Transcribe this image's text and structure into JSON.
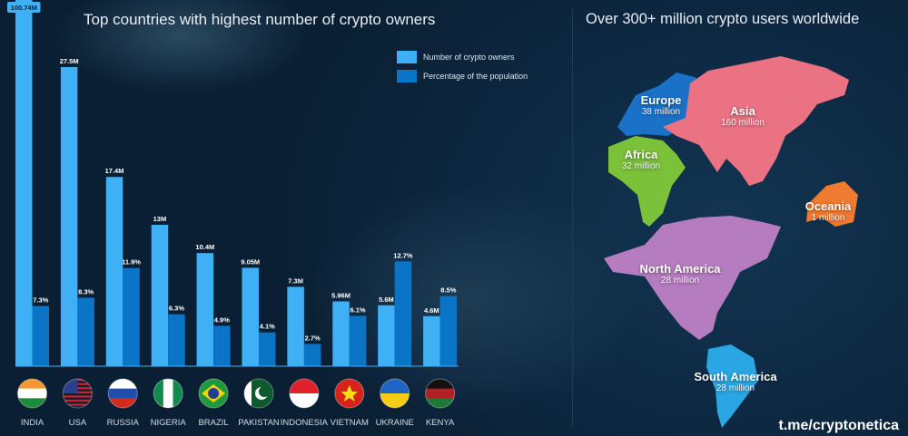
{
  "chart_data": {
    "type": "bar",
    "title": "Top countries with highest number of crypto owners",
    "categories": [
      "INDIA",
      "USA",
      "RUSSIA",
      "NIGERIA",
      "BRAZIL",
      "PAKISTAN",
      "INDONESIA",
      "VIETNAM",
      "UKRAINE",
      "KENYA"
    ],
    "series": [
      {
        "name": "Number of crypto owners",
        "values": [
          100.74,
          27.5,
          17.4,
          13,
          10.4,
          9.05,
          7.3,
          5.96,
          5.6,
          4.6
        ],
        "labels": [
          "100.74M",
          "27.5M",
          "17.4M",
          "13M",
          "10.4M",
          "9.05M",
          "7.3M",
          "5.96M",
          "5.6M",
          "4.6M"
        ],
        "color": "#3fb0f5"
      },
      {
        "name": "Percentage of the population",
        "values": [
          7.3,
          8.3,
          11.9,
          6.3,
          4.9,
          4.1,
          2.7,
          6.1,
          12.7,
          8.5
        ],
        "labels": [
          "7.3%",
          "8.3%",
          "11.9%",
          "6.3%",
          "4.9%",
          "4.1%",
          "2.7%",
          "6.1%",
          "12.7%",
          "8.5%"
        ],
        "color": "#0a74c6"
      }
    ],
    "legend": "top-right",
    "grid": false
  },
  "map": {
    "title": "Over 300+ million crypto users worldwide",
    "regions": [
      {
        "name": "Europe",
        "value": "38 million",
        "color": "#1a72c8"
      },
      {
        "name": "Asia",
        "value": "160 million",
        "color": "#ea7283"
      },
      {
        "name": "Africa",
        "value": "32 million",
        "color": "#7cc13a"
      },
      {
        "name": "Oceania",
        "value": "1 million",
        "color": "#ef7a30"
      },
      {
        "name": "North America",
        "value": "28 million",
        "color": "#b67cc0"
      },
      {
        "name": "South America",
        "value": "28 million",
        "color": "#2aa6e4"
      }
    ]
  },
  "watermark": "t.me/cryptonetica"
}
